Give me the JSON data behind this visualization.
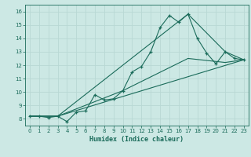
{
  "xlabel": "Humidex (Indice chaleur)",
  "xlim": [
    -0.5,
    23.5
  ],
  "ylim": [
    7.5,
    16.5
  ],
  "xticks": [
    0,
    1,
    2,
    3,
    4,
    5,
    6,
    7,
    8,
    9,
    10,
    11,
    12,
    13,
    14,
    15,
    16,
    17,
    18,
    19,
    20,
    21,
    22,
    23
  ],
  "yticks": [
    8,
    9,
    10,
    11,
    12,
    13,
    14,
    15,
    16
  ],
  "bg_color": "#cce8e4",
  "grid_color": "#b8d8d4",
  "line_color": "#1a6b5a",
  "line1_x": [
    0,
    1,
    2,
    3,
    4,
    5,
    6,
    7,
    8,
    9,
    10,
    11,
    12,
    13,
    14,
    15,
    16,
    17,
    18,
    19,
    20,
    21,
    22,
    23
  ],
  "line1_y": [
    8.2,
    8.2,
    8.1,
    8.2,
    7.8,
    8.5,
    8.6,
    9.8,
    9.4,
    9.5,
    10.1,
    11.5,
    11.9,
    13.0,
    14.8,
    15.7,
    15.2,
    15.8,
    14.0,
    12.9,
    12.1,
    13.0,
    12.5,
    12.4
  ],
  "line2_x": [
    0,
    3,
    17,
    21,
    23
  ],
  "line2_y": [
    8.2,
    8.2,
    15.8,
    13.0,
    12.4
  ],
  "line3_x": [
    0,
    3,
    10,
    17,
    21,
    23
  ],
  "line3_y": [
    8.2,
    8.2,
    10.1,
    12.5,
    12.2,
    12.4
  ],
  "line4_x": [
    0,
    3,
    23
  ],
  "line4_y": [
    8.2,
    8.2,
    12.4
  ],
  "tick_fontsize": 5.0,
  "xlabel_fontsize": 6.0
}
